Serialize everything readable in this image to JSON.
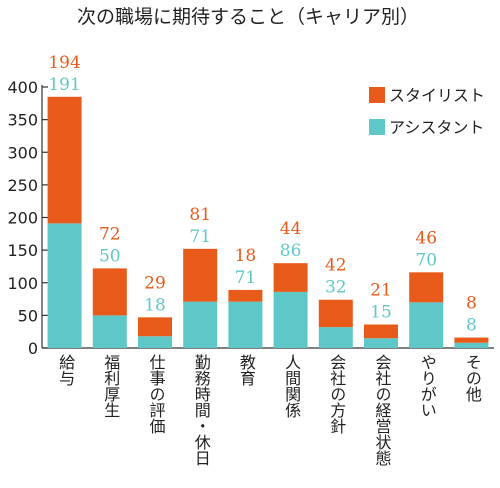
{
  "chart_data": {
    "type": "bar",
    "stacked": true,
    "title": "次の職場に期待すること（キャリア別）",
    "categories": [
      "給与",
      "福利厚生",
      "仕事の評価",
      "勤務時間・休日",
      "教育",
      "人間関係",
      "会社の方針",
      "会社の経営状態",
      "やりがい",
      "その他"
    ],
    "series": [
      {
        "name": "アシスタント",
        "color": "#5ec8c8",
        "values": [
          191,
          50,
          18,
          71,
          71,
          86,
          32,
          15,
          70,
          8
        ]
      },
      {
        "name": "スタイリスト",
        "color": "#e85a19",
        "values": [
          194,
          72,
          29,
          81,
          18,
          44,
          42,
          21,
          46,
          8
        ]
      }
    ],
    "ylim": [
      0,
      400
    ],
    "yticks": [
      0,
      50,
      100,
      150,
      200,
      250,
      300,
      350,
      400
    ],
    "xlabel": "",
    "ylabel": "",
    "grid": false,
    "legend_position": "top-right"
  }
}
